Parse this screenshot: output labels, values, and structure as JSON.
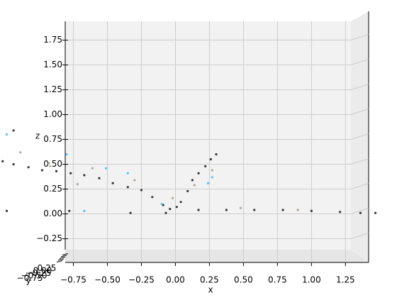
{
  "chart_data": {
    "type": "scatter3d",
    "x_label": "x",
    "y_label": "y",
    "z_label": "z",
    "xlim": [
      -0.81,
      1.29
    ],
    "zlim": [
      -0.36,
      1.94
    ],
    "xticks": [
      {
        "value": -0.75,
        "label": "−0.75"
      },
      {
        "value": -0.5,
        "label": "−0.50"
      },
      {
        "value": -0.25,
        "label": "−0.25"
      },
      {
        "value": 0,
        "label": "0.00"
      },
      {
        "value": 0.25,
        "label": "0.25"
      },
      {
        "value": 0.5,
        "label": "0.50"
      },
      {
        "value": 0.75,
        "label": "0.75"
      },
      {
        "value": 1,
        "label": "1.00"
      },
      {
        "value": 1.25,
        "label": "1.25"
      }
    ],
    "zticks": [
      {
        "value": -0.25,
        "label": "−0.25"
      },
      {
        "value": 0,
        "label": "0.00"
      },
      {
        "value": 0.25,
        "label": "0.25"
      },
      {
        "value": 0.5,
        "label": "0.50"
      },
      {
        "value": 0.75,
        "label": "0.75"
      },
      {
        "value": 1,
        "label": "1.00"
      },
      {
        "value": 1.25,
        "label": "1.25"
      },
      {
        "value": 1.5,
        "label": "1.50"
      },
      {
        "value": 1.75,
        "label": "1.75"
      }
    ],
    "yticks": [
      {
        "value": -0.75,
        "label": "−0.75"
      },
      {
        "value": -0.5,
        "label": "−0.50"
      },
      {
        "value": -0.25,
        "label": "−0.25"
      },
      {
        "value": 0,
        "label": "0.00"
      },
      {
        "value": 0.25,
        "label": "0.25"
      }
    ],
    "grid": true,
    "series": [
      {
        "color": "#3a3533",
        "x": [
          -1.27,
          -1.19,
          -1.08,
          -0.98,
          -0.875,
          -0.77,
          -0.67,
          -0.56,
          -0.46,
          -0.35,
          -0.25,
          -0.17,
          -0.09,
          -0.04,
          0.01,
          0.04,
          -0.07,
          0.09,
          0.125,
          0.17,
          0.22,
          0.26,
          0.3,
          0.17,
          0.375,
          0.58,
          0.79,
          1.0,
          1.21,
          1.36,
          1.47,
          -1.24,
          -0.33,
          -0.78,
          -1.19
        ],
        "values": [
          0.53,
          0.5,
          0.47,
          0.44,
          0.43,
          0.41,
          0.39,
          0.36,
          0.31,
          0.27,
          0.24,
          0.17,
          0.09,
          0.05,
          0.07,
          0.12,
          0.01,
          0.23,
          0.34,
          0.41,
          0.48,
          0.55,
          0.6,
          0.04,
          0.04,
          0.04,
          0.04,
          0.03,
          0.02,
          0.01,
          0.01,
          0.03,
          0.01,
          0.03,
          0.84
        ]
      },
      {
        "color": "#b5a595",
        "x": [
          -1.14,
          -0.93,
          -0.61,
          -0.3,
          -0.02,
          0.14,
          0.27,
          0.48,
          0.9,
          -0.72
        ],
        "values": [
          0.62,
          0.51,
          0.46,
          0.34,
          0.16,
          0.29,
          0.44,
          0.06,
          0.04,
          0.3
        ]
      },
      {
        "color": "#5bc0eb",
        "x": [
          -0.8,
          -0.51,
          -0.35,
          -0.1,
          0.27,
          0.24,
          -1.24,
          -0.67
        ],
        "values": [
          0.6,
          0.46,
          0.41,
          0.1,
          0.37,
          0.31,
          0.8,
          0.03
        ]
      }
    ]
  }
}
